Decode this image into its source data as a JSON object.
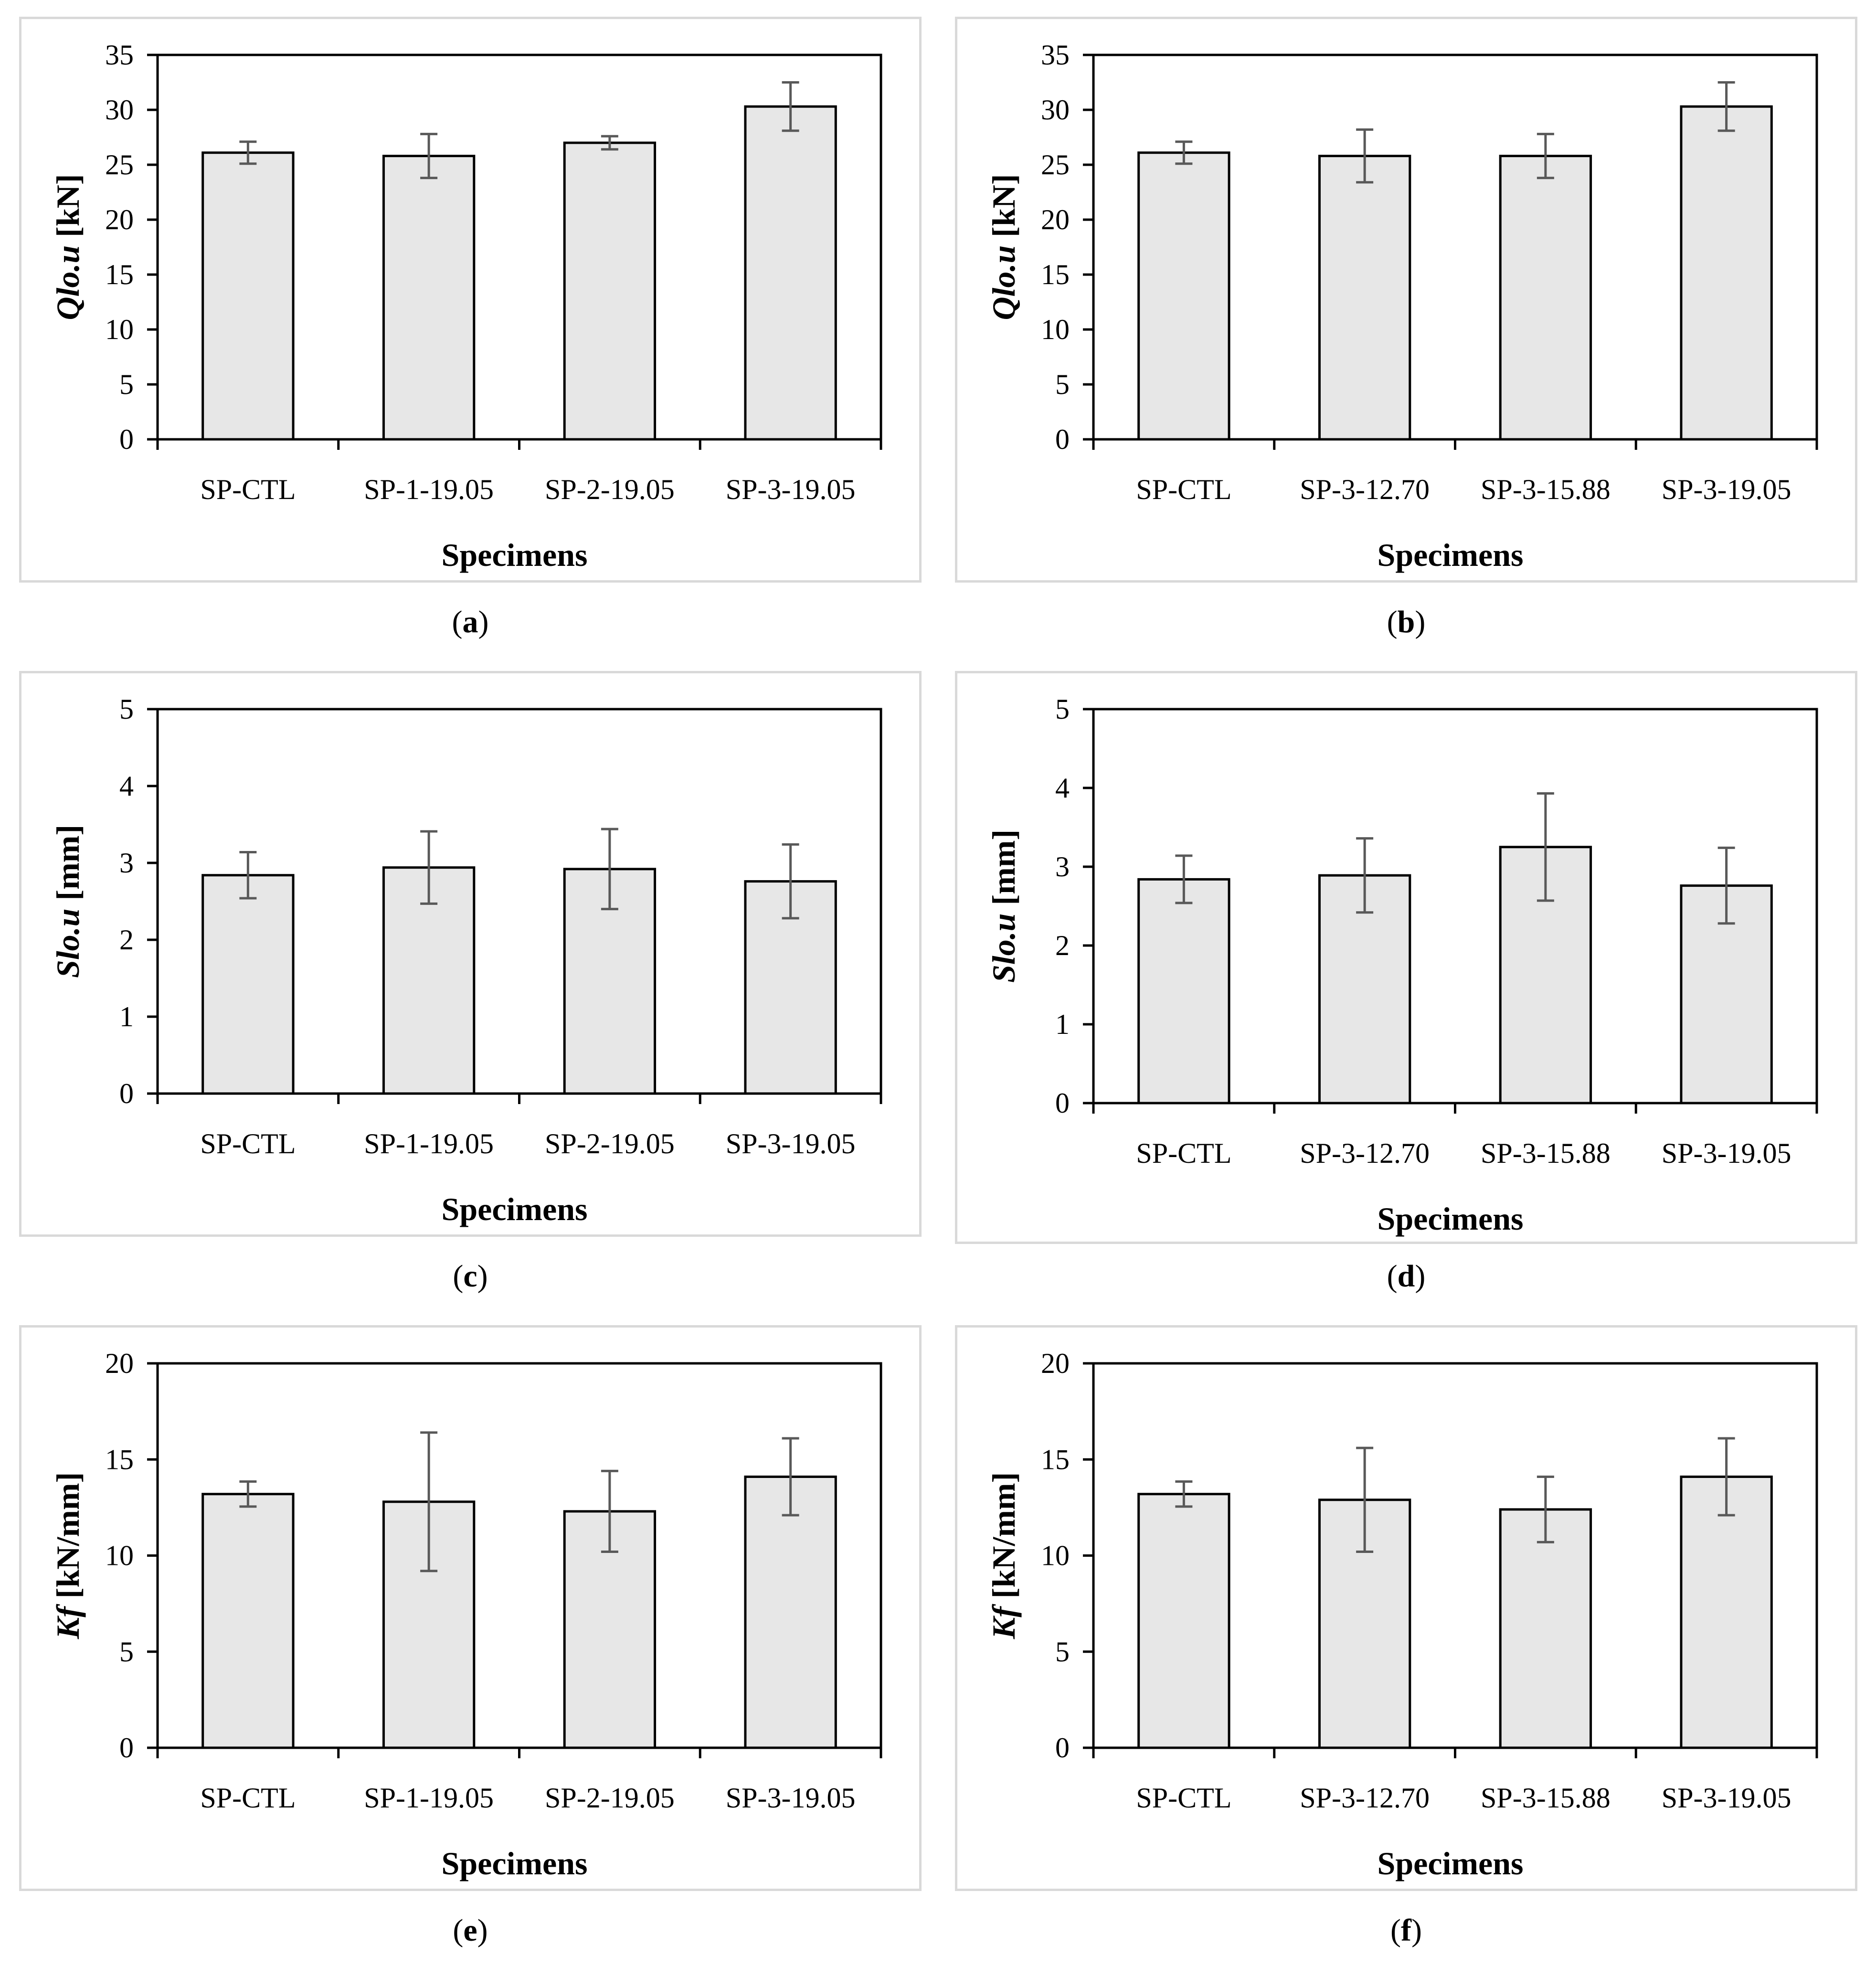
{
  "chart_data": [
    {
      "panel": "a",
      "type": "bar",
      "ylabel_var": "Qlo.u",
      "ylabel_unit": " [kN]",
      "xlabel": "Specimens",
      "categories": [
        "SP-CTL",
        "SP-1-19.05",
        "SP-2-19.05",
        "SP-3-19.05"
      ],
      "values": [
        26.1,
        25.8,
        27.0,
        30.3
      ],
      "errors": [
        1.0,
        2.0,
        0.6,
        2.2
      ],
      "ylim": [
        0,
        35
      ],
      "yticks": [
        0,
        5,
        10,
        15,
        20,
        25,
        30,
        35
      ]
    },
    {
      "panel": "b",
      "type": "bar",
      "ylabel_var": "Qlo.u",
      "ylabel_unit": " [kN]",
      "xlabel": "Specimens",
      "categories": [
        "SP-CTL",
        "SP-3-12.70",
        "SP-3-15.88",
        "SP-3-19.05"
      ],
      "values": [
        26.1,
        25.8,
        25.8,
        30.3
      ],
      "errors": [
        1.0,
        2.4,
        2.0,
        2.2
      ],
      "ylim": [
        0,
        35
      ],
      "yticks": [
        0,
        5,
        10,
        15,
        20,
        25,
        30,
        35
      ]
    },
    {
      "panel": "c",
      "type": "bar",
      "ylabel_var": "Slo.u",
      "ylabel_unit": " [mm]",
      "xlabel": "Specimens",
      "categories": [
        "SP-CTL",
        "SP-1-19.05",
        "SP-2-19.05",
        "SP-3-19.05"
      ],
      "values": [
        2.84,
        2.94,
        2.92,
        2.76
      ],
      "errors": [
        0.3,
        0.47,
        0.52,
        0.48
      ],
      "ylim": [
        0,
        5
      ],
      "yticks": [
        0,
        1,
        2,
        3,
        4,
        5
      ]
    },
    {
      "panel": "d",
      "type": "bar",
      "ylabel_var": "Slo.u",
      "ylabel_unit": " [mm]",
      "xlabel": "Specimens",
      "categories": [
        "SP-CTL",
        "SP-3-12.70",
        "SP-3-15.88",
        "SP-3-19.05"
      ],
      "values": [
        2.84,
        2.89,
        3.25,
        2.76
      ],
      "errors": [
        0.3,
        0.47,
        0.68,
        0.48
      ],
      "ylim": [
        0,
        5
      ],
      "yticks": [
        0,
        1,
        2,
        3,
        4,
        5
      ]
    },
    {
      "panel": "e",
      "type": "bar",
      "ylabel_var": "Kf",
      "ylabel_unit": " [kN/mm]",
      "xlabel": "Specimens",
      "categories": [
        "SP-CTL",
        "SP-1-19.05",
        "SP-2-19.05",
        "SP-3-19.05"
      ],
      "values": [
        13.2,
        12.8,
        12.3,
        14.1
      ],
      "errors": [
        0.65,
        3.6,
        2.1,
        2.0
      ],
      "ylim": [
        0,
        20
      ],
      "yticks": [
        0,
        5,
        10,
        15,
        20
      ]
    },
    {
      "panel": "f",
      "type": "bar",
      "ylabel_var": "Kf",
      "ylabel_unit": " [kN/mm]",
      "xlabel": "Specimens",
      "categories": [
        "SP-CTL",
        "SP-3-12.70",
        "SP-3-15.88",
        "SP-3-19.05"
      ],
      "values": [
        13.2,
        12.9,
        12.4,
        14.1
      ],
      "errors": [
        0.65,
        2.7,
        1.7,
        2.0
      ],
      "ylim": [
        0,
        20
      ],
      "yticks": [
        0,
        5,
        10,
        15,
        20
      ]
    }
  ],
  "captions": [
    "a",
    "b",
    "c",
    "d",
    "e",
    "f"
  ],
  "colors": {
    "bar_fill": "#e7e7e7",
    "bar_stroke": "#000000",
    "error_bar": "#595959",
    "panel_border": "#d9d9d9"
  }
}
